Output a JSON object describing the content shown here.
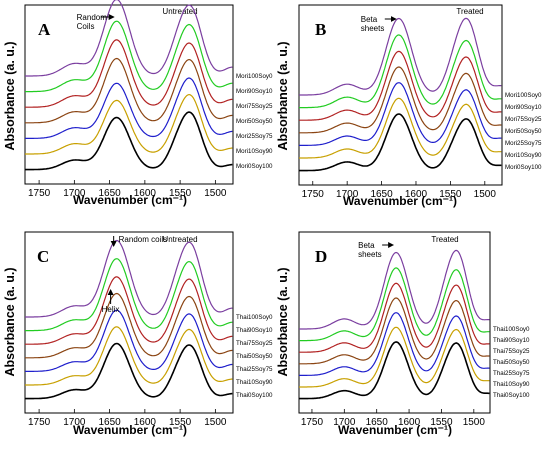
{
  "y_axis_label": "Absorbance (a. u.)",
  "x_axis_label": "Wavenumber (cm⁻¹)",
  "x_ticks": [
    1750,
    1700,
    1650,
    1600,
    1550,
    1500
  ],
  "chart_data": [
    {
      "panel": "A",
      "type": "line",
      "treatment_label": "Untreated",
      "xlim": [
        1770,
        1475
      ],
      "annotations": [
        {
          "text": "Random\nCoils",
          "x": 1640
        }
      ],
      "series": [
        {
          "name": "Mori100Soy0",
          "color": "#7b3fa0",
          "peaks": {
            "1700": 0.34,
            "1640": 1.0,
            "1535": 0.74,
            "1475": 0.18
          }
        },
        {
          "name": "Mori90Soy10",
          "color": "#22cc22",
          "peaks": {
            "1700": 0.32,
            "1640": 0.92,
            "1535": 0.7,
            "1475": 0.17
          }
        },
        {
          "name": "Mori75Soy25",
          "color": "#b22222",
          "peaks": {
            "1700": 0.31,
            "1640": 0.88,
            "1535": 0.67,
            "1475": 0.16
          }
        },
        {
          "name": "Mori50Soy50",
          "color": "#8b4513",
          "peaks": {
            "1700": 0.3,
            "1640": 0.84,
            "1535": 0.66,
            "1475": 0.15
          }
        },
        {
          "name": "Mori25Soy75",
          "color": "#1f1fcc",
          "peaks": {
            "1700": 0.29,
            "1640": 0.72,
            "1535": 0.63,
            "1475": 0.14
          }
        },
        {
          "name": "Mori10Soy90",
          "color": "#c8a000",
          "peaks": {
            "1700": 0.28,
            "1640": 0.7,
            "1535": 0.62,
            "1475": 0.12
          }
        },
        {
          "name": "Mori0Soy100",
          "color": "#000000",
          "peaks": {
            "1700": 0.26,
            "1640": 0.68,
            "1535": 0.6,
            "1475": 0.1
          }
        }
      ]
    },
    {
      "panel": "B",
      "type": "line",
      "treatment_label": "Treated",
      "xlim": [
        1770,
        1475
      ],
      "annotations": [
        {
          "text": "Beta\nsheets",
          "x": 1625
        }
      ],
      "series": [
        {
          "name": "Mori100Soy0",
          "color": "#7b3fa0",
          "peaks": {
            "1700": 0.3,
            "1625": 1.0,
            "1525": 0.8,
            "1475": 0.18
          }
        },
        {
          "name": "Mori90Soy10",
          "color": "#22cc22",
          "peaks": {
            "1700": 0.29,
            "1625": 0.95,
            "1525": 0.7,
            "1475": 0.17
          }
        },
        {
          "name": "Mori75Soy25",
          "color": "#b22222",
          "peaks": {
            "1700": 0.28,
            "1625": 0.9,
            "1525": 0.66,
            "1475": 0.16
          }
        },
        {
          "name": "Mori50Soy50",
          "color": "#8b4513",
          "peaks": {
            "1700": 0.27,
            "1625": 0.86,
            "1525": 0.62,
            "1475": 0.15
          }
        },
        {
          "name": "Mori25Soy75",
          "color": "#1f1fcc",
          "peaks": {
            "1700": 0.26,
            "1625": 0.82,
            "1525": 0.58,
            "1475": 0.14
          }
        },
        {
          "name": "Mori10Soy90",
          "color": "#c8a000",
          "peaks": {
            "1700": 0.25,
            "1625": 0.78,
            "1525": 0.56,
            "1475": 0.12
          }
        },
        {
          "name": "Mori0Soy100",
          "color": "#000000",
          "peaks": {
            "1700": 0.24,
            "1625": 0.74,
            "1525": 0.54,
            "1475": 0.1
          }
        }
      ]
    },
    {
      "panel": "C",
      "type": "line",
      "treatment_label": "Untreated",
      "xlim": [
        1770,
        1475
      ],
      "annotations": [
        {
          "text": "Random coils",
          "x": 1640
        },
        {
          "text": "Helix",
          "x": 1650
        }
      ],
      "series": [
        {
          "name": "Thai100Soy0",
          "color": "#7b3fa0",
          "peaks": {
            "1700": 0.3,
            "1640": 1.0,
            "1535": 0.78,
            "1475": 0.18
          }
        },
        {
          "name": "Thai90Soy10",
          "color": "#22cc22",
          "peaks": {
            "1700": 0.29,
            "1640": 0.94,
            "1535": 0.72,
            "1475": 0.17
          }
        },
        {
          "name": "Thai75Soy25",
          "color": "#b22222",
          "peaks": {
            "1700": 0.28,
            "1640": 0.88,
            "1535": 0.68,
            "1475": 0.16
          }
        },
        {
          "name": "Thai50Soy50",
          "color": "#8b4513",
          "peaks": {
            "1700": 0.27,
            "1640": 0.84,
            "1535": 0.64,
            "1475": 0.15
          }
        },
        {
          "name": "Thai25Soy75",
          "color": "#1f1fcc",
          "peaks": {
            "1700": 0.26,
            "1640": 0.8,
            "1535": 0.6,
            "1475": 0.14
          }
        },
        {
          "name": "Thai10Soy90",
          "color": "#c8a000",
          "peaks": {
            "1700": 0.25,
            "1640": 0.76,
            "1535": 0.58,
            "1475": 0.12
          }
        },
        {
          "name": "Thai0Soy100",
          "color": "#000000",
          "peaks": {
            "1700": 0.24,
            "1640": 0.72,
            "1535": 0.56,
            "1475": 0.1
          }
        }
      ]
    },
    {
      "panel": "D",
      "type": "line",
      "treatment_label": "Treated",
      "xlim": [
        1770,
        1475
      ],
      "annotations": [
        {
          "text": "Beta\nsheets",
          "x": 1620
        }
      ],
      "series": [
        {
          "name": "Thai100Soy0",
          "color": "#7b3fa0",
          "peaks": {
            "1700": 0.28,
            "1620": 1.0,
            "1525": 0.82,
            "1475": 0.18
          }
        },
        {
          "name": "Thai90Soy10",
          "color": "#22cc22",
          "peaks": {
            "1700": 0.27,
            "1620": 0.95,
            "1525": 0.74,
            "1475": 0.17
          }
        },
        {
          "name": "Thai75Soy25",
          "color": "#b22222",
          "peaks": {
            "1700": 0.26,
            "1620": 0.9,
            "1525": 0.7,
            "1475": 0.16
          }
        },
        {
          "name": "Thai50Soy50",
          "color": "#8b4513",
          "peaks": {
            "1700": 0.25,
            "1620": 0.86,
            "1525": 0.66,
            "1475": 0.15
          }
        },
        {
          "name": "Thai25Soy75",
          "color": "#1f1fcc",
          "peaks": {
            "1700": 0.24,
            "1620": 0.82,
            "1525": 0.62,
            "1475": 0.14
          }
        },
        {
          "name": "Thai10Soy90",
          "color": "#c8a000",
          "peaks": {
            "1700": 0.23,
            "1620": 0.78,
            "1525": 0.6,
            "1475": 0.12
          }
        },
        {
          "name": "Thai0Soy100",
          "color": "#000000",
          "peaks": {
            "1700": 0.22,
            "1620": 0.74,
            "1525": 0.58,
            "1475": 0.1
          }
        }
      ]
    }
  ]
}
